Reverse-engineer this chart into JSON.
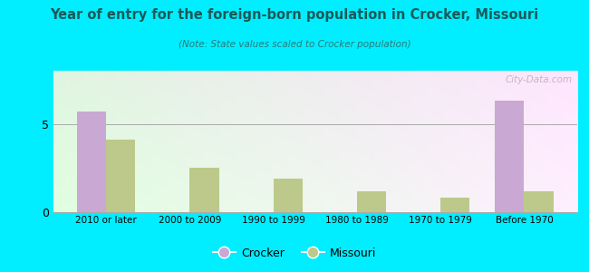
{
  "title": "Year of entry for the foreign-born population in Crocker, Missouri",
  "subtitle": "(Note: State values scaled to Crocker population)",
  "categories": [
    "2010 or later",
    "2000 to 2009",
    "1990 to 1999",
    "1980 to 1989",
    "1970 to 1979",
    "Before 1970"
  ],
  "crocker_values": [
    5.7,
    0,
    0,
    0,
    0,
    6.3
  ],
  "missouri_values": [
    4.1,
    2.5,
    1.9,
    1.2,
    0.8,
    1.2
  ],
  "crocker_color": "#c9a8d4",
  "missouri_color": "#bdc98a",
  "background_outer": "#00eeff",
  "ylim": [
    0,
    8
  ],
  "yticks": [
    0,
    5
  ],
  "bar_width": 0.35,
  "legend_labels": [
    "Crocker",
    "Missouri"
  ],
  "watermark": "City-Data.com",
  "title_color": "#1a5a5a",
  "subtitle_color": "#2a7a7a"
}
